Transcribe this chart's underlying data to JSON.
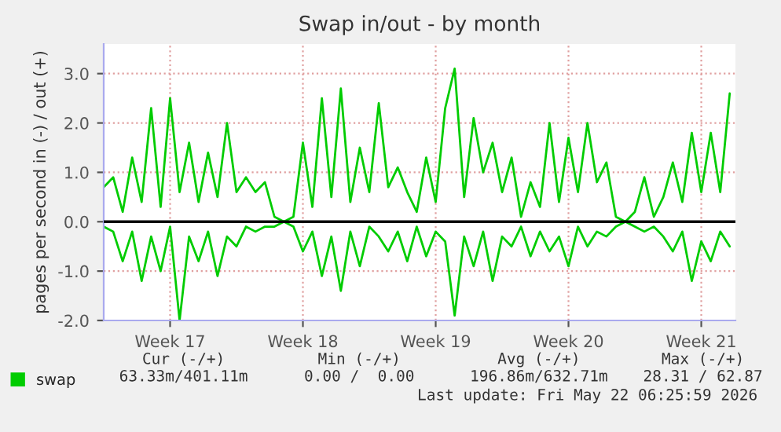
{
  "chart_data": {
    "type": "line",
    "title": "Swap in/out - by month",
    "ylabel": "pages per second in (-) / out (+)",
    "categories": [
      null,
      null,
      null,
      null,
      null,
      null,
      null,
      "Week 17",
      null,
      null,
      null,
      null,
      null,
      null,
      null,
      null,
      null,
      null,
      null,
      null,
      null,
      "Week 18",
      null,
      null,
      null,
      null,
      null,
      null,
      null,
      null,
      null,
      null,
      null,
      null,
      null,
      "Week 19",
      null,
      null,
      null,
      null,
      null,
      null,
      null,
      null,
      null,
      null,
      null,
      null,
      null,
      "Week 20",
      null,
      null,
      null,
      null,
      null,
      null,
      null,
      null,
      null,
      null,
      null,
      null,
      null,
      "Week 21",
      null,
      null,
      null
    ],
    "series": [
      {
        "name": "swap",
        "color": "#00cc00",
        "values": [
          0.7,
          0.9,
          0.2,
          1.3,
          0.4,
          2.3,
          0.3,
          2.5,
          0.6,
          1.6,
          0.4,
          1.4,
          0.5,
          2.0,
          0.6,
          0.9,
          0.6,
          0.8,
          0.1,
          0.0,
          0.1,
          1.6,
          0.3,
          2.5,
          0.5,
          2.7,
          0.4,
          1.5,
          0.6,
          2.4,
          0.7,
          1.1,
          0.6,
          0.2,
          1.3,
          0.4,
          2.3,
          3.1,
          0.5,
          2.1,
          1.0,
          1.6,
          0.6,
          1.3,
          0.1,
          0.8,
          0.3,
          2.0,
          0.4,
          1.7,
          0.6,
          2.0,
          0.8,
          1.2,
          0.1,
          0.0,
          0.2,
          0.9,
          0.1,
          0.5,
          1.2,
          0.4,
          1.8,
          0.6,
          1.8,
          0.6,
          2.6
        ]
      },
      {
        "color": "#00cc00",
        "values": [
          -0.1,
          -0.2,
          -0.8,
          -0.2,
          -1.2,
          -0.3,
          -1.0,
          -0.1,
          -2.0,
          -0.3,
          -0.8,
          -0.2,
          -1.1,
          -0.3,
          -0.5,
          -0.1,
          -0.2,
          -0.1,
          -0.1,
          0.0,
          -0.1,
          -0.6,
          -0.2,
          -1.1,
          -0.3,
          -1.4,
          -0.2,
          -0.9,
          -0.1,
          -0.3,
          -0.6,
          -0.2,
          -0.8,
          -0.1,
          -0.7,
          -0.2,
          -0.4,
          -1.9,
          -0.3,
          -0.9,
          -0.2,
          -1.2,
          -0.3,
          -0.5,
          -0.1,
          -0.7,
          -0.2,
          -0.6,
          -0.3,
          -0.9,
          -0.1,
          -0.5,
          -0.2,
          -0.3,
          -0.1,
          0.0,
          -0.1,
          -0.2,
          -0.1,
          -0.3,
          -0.6,
          -0.2,
          -1.2,
          -0.4,
          -0.8,
          -0.2,
          -0.5
        ]
      }
    ],
    "ylim": [
      -2.0,
      3.6
    ],
    "yticks": [
      {
        "value": -2,
        "label": "-2.0"
      },
      {
        "value": -1,
        "label": "-1.0"
      },
      {
        "value": 0,
        "label": "0.0"
      },
      {
        "value": 1,
        "label": "1.0"
      },
      {
        "value": 2,
        "label": "2.0"
      },
      {
        "value": 3,
        "label": "3.0"
      }
    ],
    "ref_lines": [
      {
        "axis": "y",
        "value": 0,
        "color": "#000000"
      }
    ],
    "grid": true,
    "legend": "bottom left",
    "marker": "none",
    "line_style": "solid",
    "annotations": [
      "Cur (-/+)",
      "Min (-/+)",
      "Avg (-/+)",
      "Max (-/+)",
      "63.33m/401.11m",
      "0.00 /  0.00",
      "196.86m/632.71m",
      "28.31 / 62.87",
      "Last update: Fri May 22 06:25:59 2026"
    ]
  }
}
